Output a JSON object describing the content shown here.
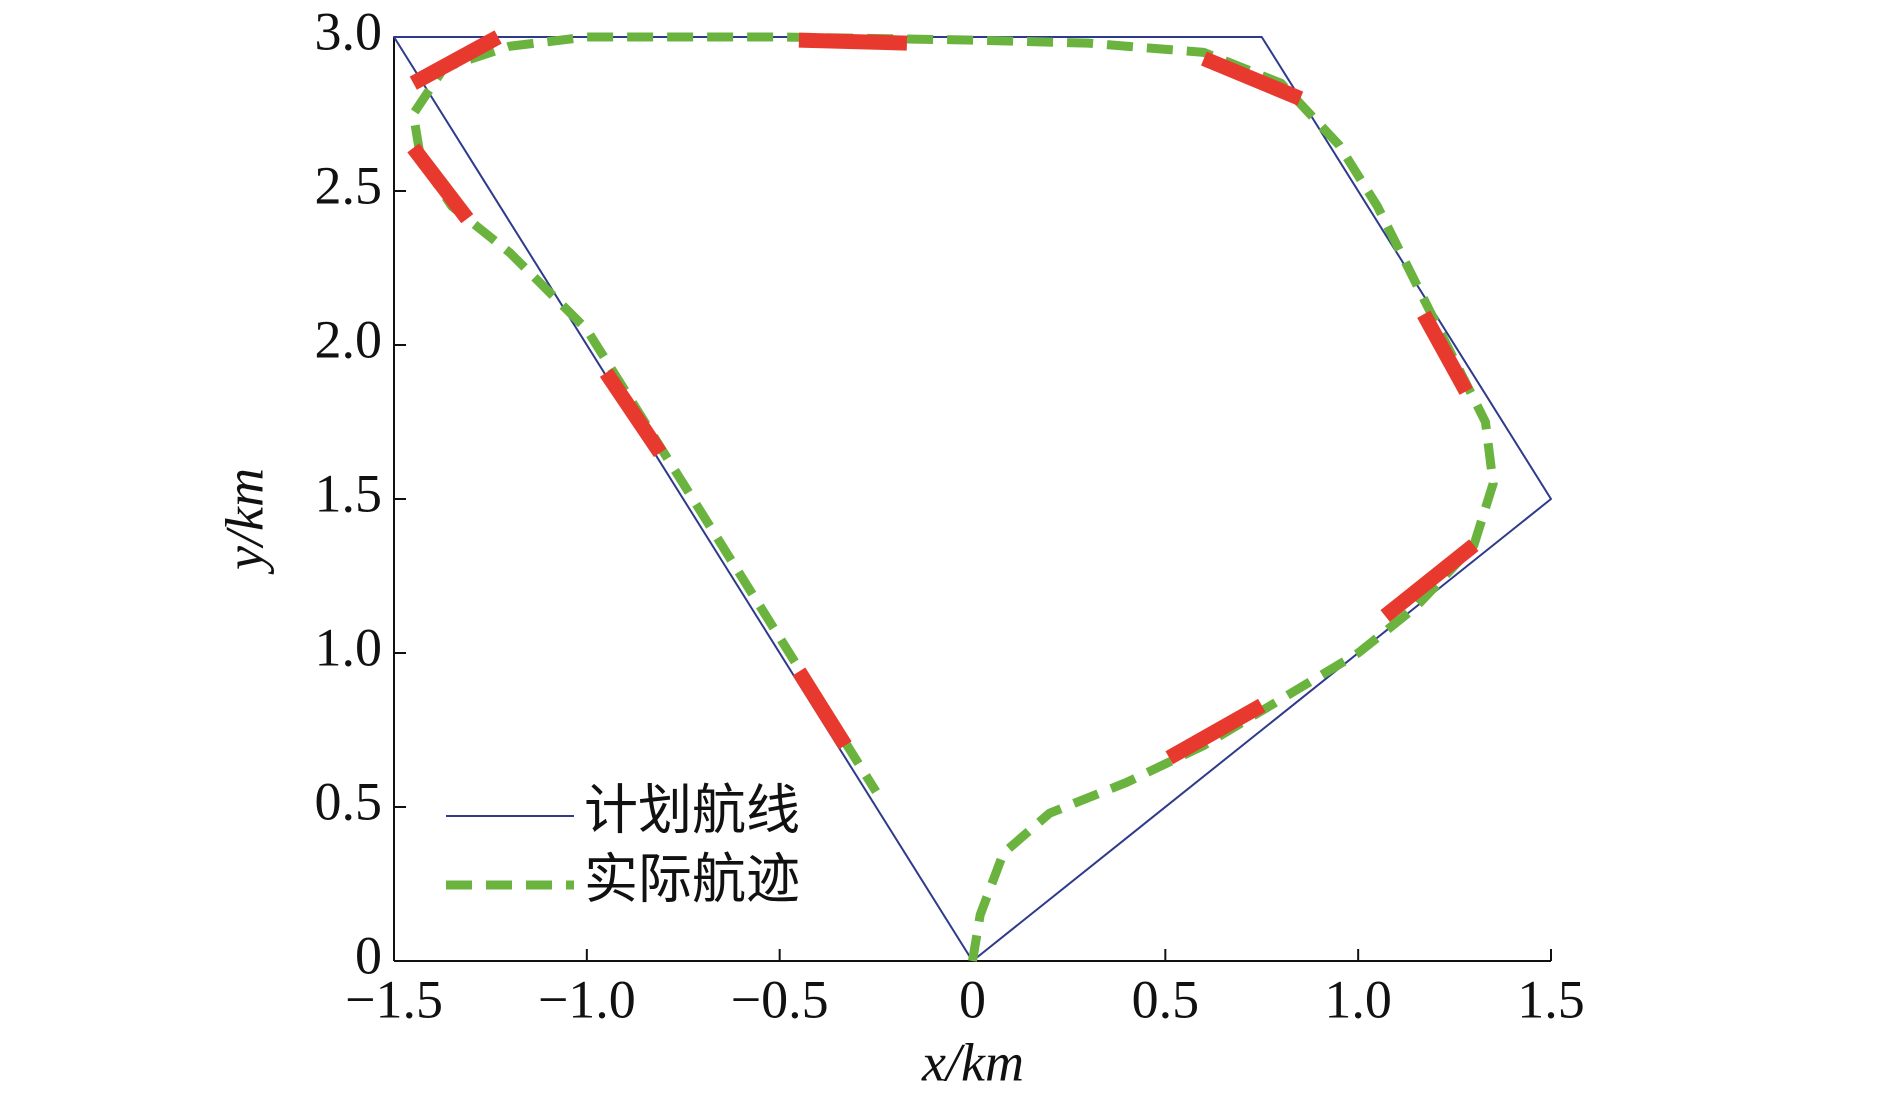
{
  "chart_data": {
    "type": "line",
    "xlabel": "x/km",
    "ylabel": "y/km",
    "xlim": [
      -1.5,
      1.5
    ],
    "ylim": [
      0,
      3.0
    ],
    "xticks": [
      {
        "value": -1.5,
        "label": "−1.5"
      },
      {
        "value": -1.0,
        "label": "−1.0"
      },
      {
        "value": -0.5,
        "label": "−0.5"
      },
      0,
      0.5,
      {
        "value": 1.0,
        "label": "1.0"
      },
      1.5
    ],
    "yticks": [
      0,
      0.5,
      {
        "value": 1.0,
        "label": "1.0"
      },
      1.5,
      {
        "value": 2.0,
        "label": "2.0"
      },
      2.5,
      {
        "value": 3.0,
        "label": "3.0"
      }
    ],
    "legend": "lower left",
    "series": [
      {
        "name": "计划航线",
        "color": "#2e3a8c",
        "style": "solid",
        "x": [
          0,
          -1.5,
          0.75,
          1.5,
          0
        ],
        "values": [
          0,
          3.0,
          3.0,
          1.5,
          0
        ]
      },
      {
        "name": "实际航迹",
        "color": "#6ab33e",
        "style": "dashed",
        "x": [
          0,
          0.02,
          0.08,
          0.2,
          0.4,
          0.6,
          0.8,
          1.0,
          1.15,
          1.3,
          1.35,
          1.33,
          1.25,
          1.15,
          1.05,
          0.95,
          0.8,
          0.6,
          0.3,
          0,
          -0.5,
          -1.0,
          -1.2,
          -1.37,
          -1.45,
          -1.43,
          -1.35,
          -1.2,
          -1.0,
          -0.85,
          -0.7,
          -0.55,
          -0.4,
          -0.3,
          -0.25
        ],
        "values": [
          0,
          0.15,
          0.35,
          0.48,
          0.58,
          0.7,
          0.85,
          1.0,
          1.15,
          1.35,
          1.55,
          1.75,
          1.95,
          2.2,
          2.45,
          2.65,
          2.85,
          2.95,
          2.98,
          2.99,
          3.0,
          3.0,
          2.97,
          2.9,
          2.75,
          2.6,
          2.45,
          2.3,
          2.05,
          1.75,
          1.45,
          1.15,
          0.85,
          0.65,
          0.55
        ]
      },
      {
        "color": "#e8392f",
        "style": "thick",
        "x": [
          -1.23,
          -1.45,
          null,
          -0.45,
          -0.17,
          null,
          0.6,
          0.85,
          null,
          1.17,
          1.28,
          null,
          1.3,
          1.07,
          null,
          0.75,
          0.51,
          null,
          -0.45,
          -0.33,
          null,
          -0.95,
          -0.81,
          null,
          -1.45,
          -1.31
        ],
        "values": [
          3.0,
          2.85,
          null,
          2.99,
          2.98,
          null,
          2.93,
          2.8,
          null,
          2.1,
          1.85,
          null,
          1.35,
          1.12,
          null,
          0.83,
          0.66,
          null,
          0.94,
          0.7,
          null,
          1.91,
          1.65,
          null,
          2.64,
          2.41
        ]
      }
    ]
  }
}
